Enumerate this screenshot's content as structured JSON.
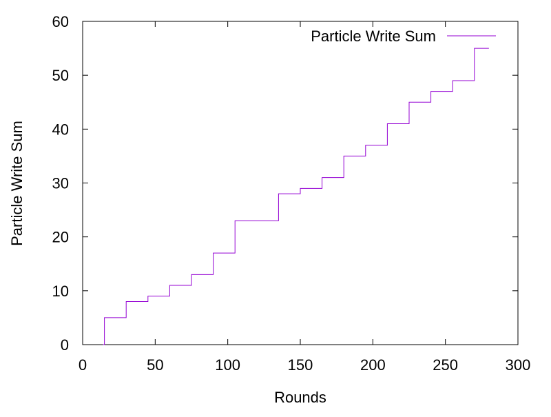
{
  "chart_data": {
    "type": "line",
    "title": "",
    "xlabel": "Rounds",
    "ylabel": "Particle Write Sum",
    "xlim": [
      0,
      300
    ],
    "ylim": [
      0,
      60
    ],
    "xticks": [
      0,
      50,
      100,
      150,
      200,
      250,
      300
    ],
    "yticks": [
      0,
      10,
      20,
      30,
      40,
      50,
      60
    ],
    "xtick_labels": [
      "0",
      "50",
      "100",
      "150",
      "200",
      "250",
      "300"
    ],
    "ytick_labels": [
      "0",
      "10",
      "20",
      "30",
      "40",
      "50",
      "60"
    ],
    "grid": false,
    "legend_position": "top-right",
    "series": [
      {
        "name": "Particle Write Sum",
        "color": "#9400d3",
        "step": "post",
        "x": [
          14,
          15,
          30,
          45,
          60,
          75,
          90,
          105,
          135,
          150,
          165,
          180,
          195,
          210,
          225,
          240,
          255,
          270,
          280
        ],
        "y": [
          0,
          5,
          8,
          9,
          11,
          13,
          17,
          23,
          28,
          29,
          31,
          35,
          37,
          41,
          45,
          47,
          49,
          55,
          55
        ]
      }
    ]
  }
}
